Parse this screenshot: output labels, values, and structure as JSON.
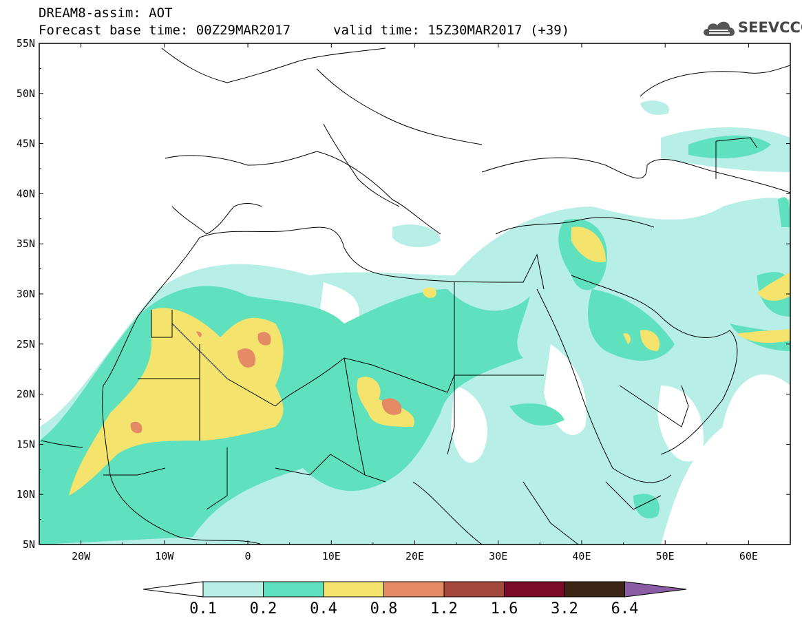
{
  "header": {
    "line1": "DREAM8-assim: AOT",
    "line2": "Forecast base time: 00Z29MAR2017",
    "valid": "valid time: 15Z30MAR2017 (+39)"
  },
  "logo": {
    "text": "SEEVCCC",
    "icon": "cloud-icon"
  },
  "map": {
    "lon_range": [
      -25,
      65
    ],
    "lat_range": [
      5,
      55
    ],
    "lat_ticks": [
      "55N",
      "50N",
      "45N",
      "40N",
      "35N",
      "30N",
      "25N",
      "20N",
      "15N",
      "10N",
      "5N"
    ],
    "lon_ticks": [
      "20W",
      "10W",
      "0",
      "10E",
      "20E",
      "30E",
      "40E",
      "50E",
      "60E"
    ],
    "field": "AOT"
  },
  "colorbar": {
    "levels": [
      "0.1",
      "0.2",
      "0.4",
      "0.8",
      "1.2",
      "1.6",
      "3.2",
      "6.4"
    ],
    "colors": [
      "#ffffff",
      "#b7efe6",
      "#5fe1bd",
      "#f4e36c",
      "#e48a65",
      "#a4473c",
      "#7c0a27",
      "#3e2617",
      "#8a5ca3"
    ]
  }
}
